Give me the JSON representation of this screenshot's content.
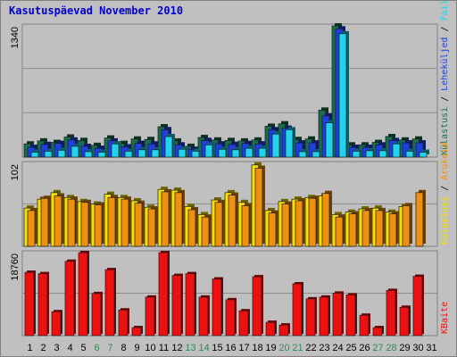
{
  "title": "Kasutuspäevad November 2010",
  "chart_data": [
    {
      "type": "bar",
      "panel": "top",
      "ymax_label": "1340",
      "ylim": [
        0,
        1340
      ],
      "categories": [
        "1",
        "2",
        "3",
        "4",
        "5",
        "6",
        "7",
        "8",
        "9",
        "10",
        "11",
        "12",
        "13",
        "14",
        "15",
        "16",
        "17",
        "18",
        "19",
        "20",
        "21",
        "22",
        "23",
        "24",
        "25",
        "26",
        "27",
        "28",
        "29",
        "30",
        "31"
      ],
      "weekend_days": [
        "6",
        "7",
        "13",
        "14",
        "20",
        "21",
        "27",
        "28"
      ],
      "legend": [
        {
          "label": "Külastusi",
          "color": "#1A6E4B"
        },
        {
          "label": "Leheküljed",
          "color": "#1E40E0"
        },
        {
          "label": "Faile",
          "color": "#22D3EE"
        }
      ],
      "series": [
        {
          "name": "Külastusi",
          "color": "#1A6E4B",
          "values": [
            135,
            165,
            150,
            205,
            170,
            120,
            195,
            140,
            185,
            180,
            310,
            165,
            110,
            200,
            175,
            170,
            165,
            175,
            315,
            340,
            180,
            185,
            480,
            1340,
            125,
            125,
            150,
            210,
            175,
            185,
            null
          ]
        },
        {
          "name": "Leheküljed",
          "color": "#1E40E0",
          "values": [
            100,
            130,
            140,
            175,
            110,
            90,
            165,
            105,
            140,
            135,
            280,
            125,
            80,
            170,
            135,
            130,
            140,
            135,
            280,
            295,
            145,
            145,
            420,
            1310,
            100,
            100,
            125,
            170,
            145,
            145,
            null
          ]
        },
        {
          "name": "Faile",
          "color": "#22D3EE",
          "values": [
            50,
            60,
            70,
            110,
            55,
            50,
            135,
            60,
            75,
            75,
            210,
            80,
            60,
            125,
            80,
            75,
            90,
            90,
            235,
            280,
            55,
            55,
            350,
            1260,
            60,
            65,
            65,
            135,
            60,
            50,
            null
          ]
        }
      ]
    },
    {
      "type": "bar",
      "panel": "middle",
      "ymax_label": "102",
      "ylim": [
        0,
        102
      ],
      "legend": [
        {
          "label": "Külastusi",
          "color": "#F5E000"
        },
        {
          "label": "Arukeid",
          "color": "#F09010"
        }
      ],
      "series": [
        {
          "name": "Külastusi",
          "color": "#F5E000",
          "values": [
            47,
            58,
            66,
            60,
            55,
            52,
            64,
            60,
            56,
            48,
            70,
            69,
            49,
            39,
            57,
            66,
            54,
            100,
            44,
            55,
            58,
            60,
            62,
            39,
            42,
            46,
            47,
            42,
            49,
            null,
            null
          ]
        },
        {
          "name": "Arukeid",
          "color": "#F09010",
          "values": [
            44,
            59,
            62,
            58,
            54,
            51,
            60,
            58,
            53,
            46,
            67,
            66,
            45,
            36,
            54,
            63,
            50,
            96,
            41,
            52,
            56,
            59,
            65,
            36,
            40,
            44,
            44,
            40,
            50,
            66,
            null
          ]
        }
      ]
    },
    {
      "type": "bar",
      "panel": "bottom",
      "ymax_label": "18760",
      "ylim": [
        0,
        18760
      ],
      "legend": [
        {
          "label": "KBaite",
          "color": "#EE1010"
        }
      ],
      "series": [
        {
          "name": "KBaite",
          "color": "#EE1010",
          "values": [
            14300,
            14000,
            5400,
            16800,
            18760,
            9500,
            14900,
            5800,
            1800,
            8700,
            18760,
            13600,
            14000,
            8700,
            12800,
            8100,
            5600,
            13300,
            3000,
            2400,
            11700,
            8300,
            8700,
            9600,
            9200,
            4600,
            1800,
            10200,
            6400,
            13400,
            null
          ]
        }
      ]
    }
  ]
}
